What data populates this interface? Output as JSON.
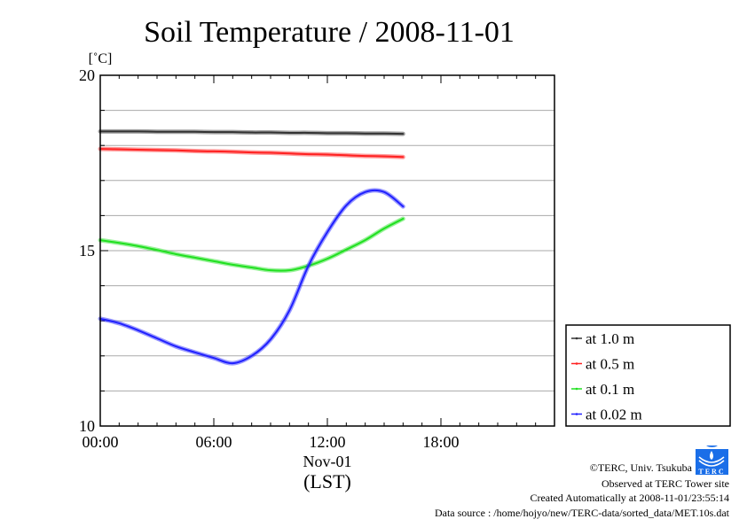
{
  "chart_data": {
    "type": "line",
    "title": "Soil Temperature / 2008-11-01",
    "ylabel": "[˚C]",
    "xlabel_date": "Nov-01",
    "xlabel": "(LST)",
    "ylim": [
      10,
      20
    ],
    "xlim": [
      0,
      24
    ],
    "yticks": [
      {
        "v": 10,
        "label": "10"
      },
      {
        "v": 15,
        "label": "15"
      },
      {
        "v": 20,
        "label": "20"
      }
    ],
    "xticks": [
      {
        "v": 0,
        "label": "00:00"
      },
      {
        "v": 6,
        "label": "06:00"
      },
      {
        "v": 12,
        "label": "12:00"
      },
      {
        "v": 18,
        "label": "18:00"
      }
    ],
    "grid": true,
    "legend_position": "right",
    "x": [
      0,
      1,
      2,
      3,
      4,
      5,
      6,
      7,
      8,
      9,
      10,
      11,
      12,
      13,
      14,
      15,
      16
    ],
    "series": [
      {
        "name": "at 1.0 m",
        "color": "#333333",
        "values": [
          18.4,
          18.4,
          18.4,
          18.39,
          18.39,
          18.39,
          18.38,
          18.38,
          18.37,
          18.37,
          18.36,
          18.36,
          18.35,
          18.35,
          18.34,
          18.34,
          18.33
        ]
      },
      {
        "name": "at 0.5 m",
        "color": "#ff2020",
        "values": [
          17.9,
          17.89,
          17.88,
          17.87,
          17.86,
          17.84,
          17.83,
          17.82,
          17.8,
          17.79,
          17.77,
          17.75,
          17.74,
          17.72,
          17.7,
          17.69,
          17.67
        ]
      },
      {
        "name": "at 0.1 m",
        "color": "#20e020",
        "values": [
          15.3,
          15.22,
          15.13,
          15.02,
          14.9,
          14.8,
          14.7,
          14.6,
          14.52,
          14.44,
          14.44,
          14.57,
          14.77,
          15.03,
          15.3,
          15.63,
          15.91
        ]
      },
      {
        "name": "at 0.02 m",
        "color": "#2020ff",
        "values": [
          13.06,
          12.93,
          12.73,
          12.5,
          12.27,
          12.1,
          11.94,
          11.79,
          12.0,
          12.47,
          13.3,
          14.57,
          15.53,
          16.29,
          16.67,
          16.67,
          16.26
        ]
      }
    ]
  },
  "footer": {
    "copyright": "©TERC, Univ. Tsukuba",
    "logo_text": "TERC",
    "observed": "Observed at TERC Tower site",
    "created": "Created Automatically at 2008-11-01/23:55:14",
    "source": "Data source : /home/hojyo/new/TERC-data/sorted_data/MET.10s.dat"
  }
}
